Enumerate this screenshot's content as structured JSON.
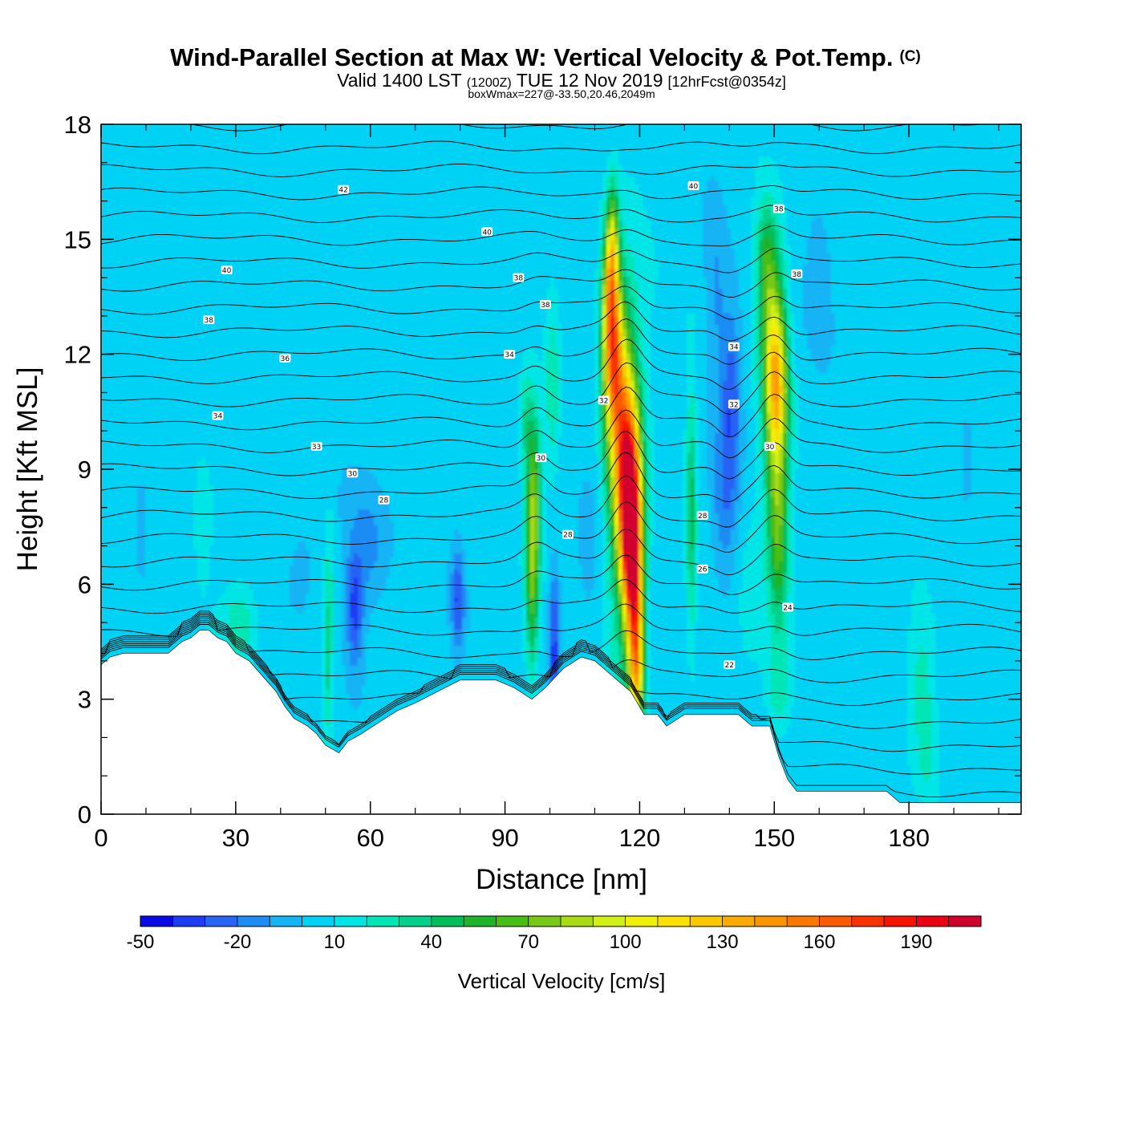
{
  "title": {
    "main": "Wind-Parallel Section at Max W: Vertical Velocity & Pot.Temp.",
    "copyright": "(C)",
    "line2_a": "Valid 1400 LST",
    "line2_b": "(1200Z)",
    "line2_c": "TUE 12 Nov 2019",
    "line2_d": "[12hrFcst@0354z]",
    "line3": "boxWmax=227@-33.50,20.46,2049m"
  },
  "chart_data": {
    "type": "heatmap",
    "xlabel": "Distance [nm]",
    "ylabel": "Height [Kft MSL]",
    "xlim": [
      0,
      205
    ],
    "ylim": [
      0,
      18
    ],
    "xticks": [
      0,
      30,
      60,
      90,
      120,
      150,
      180
    ],
    "yticks": [
      0,
      3,
      6,
      9,
      12,
      15,
      18
    ],
    "grid": false,
    "colorbar": {
      "label": "Vertical Velocity [cm/s]",
      "placement": "bottom",
      "tick_labels": [
        "-50",
        "-20",
        "10",
        "40",
        "70",
        "100",
        "130",
        "160",
        "190"
      ],
      "levels": [
        -50,
        -40,
        -30,
        -20,
        -10,
        0,
        10,
        20,
        30,
        40,
        50,
        60,
        70,
        80,
        90,
        100,
        110,
        120,
        130,
        140,
        150,
        160,
        170,
        180,
        190,
        200,
        210
      ],
      "colors": [
        "#0a0ae6",
        "#1e3cf5",
        "#2864f5",
        "#1e8cf5",
        "#14b4f5",
        "#00d2f5",
        "#00e6e6",
        "#00e6b4",
        "#00d28c",
        "#00be5a",
        "#1eb428",
        "#46be14",
        "#78c814",
        "#aadc14",
        "#d2f014",
        "#f0f00a",
        "#fae100",
        "#fac800",
        "#faaa00",
        "#fa9600",
        "#fa7800",
        "#fa5a00",
        "#fa3200",
        "#fa1400",
        "#eb0014",
        "#d2002d"
      ]
    },
    "background_value": 5,
    "terrain_kft": [
      [
        0,
        3.9
      ],
      [
        2,
        4.1
      ],
      [
        5,
        4.2
      ],
      [
        15,
        4.2
      ],
      [
        18,
        4.5
      ],
      [
        20,
        4.6
      ],
      [
        22,
        4.8
      ],
      [
        24,
        4.8
      ],
      [
        26,
        4.6
      ],
      [
        28,
        4.5
      ],
      [
        30,
        4.2
      ],
      [
        33,
        4.0
      ],
      [
        36,
        3.6
      ],
      [
        39,
        3.2
      ],
      [
        41,
        2.8
      ],
      [
        43,
        2.5
      ],
      [
        46,
        2.3
      ],
      [
        48,
        2.1
      ],
      [
        50,
        1.8
      ],
      [
        53,
        1.6
      ],
      [
        55,
        1.9
      ],
      [
        58,
        2.1
      ],
      [
        62,
        2.4
      ],
      [
        66,
        2.7
      ],
      [
        70,
        2.9
      ],
      [
        75,
        3.2
      ],
      [
        80,
        3.5
      ],
      [
        88,
        3.5
      ],
      [
        92,
        3.3
      ],
      [
        96,
        3.0
      ],
      [
        99,
        3.3
      ],
      [
        103,
        3.8
      ],
      [
        107,
        4.1
      ],
      [
        110,
        4.0
      ],
      [
        114,
        3.6
      ],
      [
        118,
        3.2
      ],
      [
        121,
        2.6
      ],
      [
        124,
        2.6
      ],
      [
        126,
        2.3
      ],
      [
        130,
        2.6
      ],
      [
        142,
        2.6
      ],
      [
        145,
        2.3
      ],
      [
        149,
        2.3
      ],
      [
        151,
        1.5
      ],
      [
        153,
        0.9
      ],
      [
        155,
        0.6
      ],
      [
        175,
        0.6
      ],
      [
        178,
        0.3
      ],
      [
        180,
        0.3
      ],
      [
        205,
        0.3
      ]
    ],
    "updraft_cells": [
      {
        "x": 118.0,
        "z": 7.6,
        "sx": 1.6,
        "sz": 1.6,
        "w": 190
      },
      {
        "x": 116.5,
        "z": 9.6,
        "sx": 2.2,
        "sz": 2.0,
        "w": 110
      },
      {
        "x": 114.0,
        "z": 12.0,
        "sx": 1.6,
        "sz": 1.5,
        "w": 115
      },
      {
        "x": 113.5,
        "z": 13.8,
        "sx": 1.2,
        "sz": 1.2,
        "w": 80
      },
      {
        "x": 114.0,
        "z": 15.2,
        "sx": 0.9,
        "sz": 1.0,
        "w": 45
      },
      {
        "x": 119.0,
        "z": 5.0,
        "sx": 1.3,
        "sz": 1.6,
        "w": 110
      },
      {
        "x": 119.5,
        "z": 3.6,
        "sx": 1.0,
        "sz": 0.9,
        "w": 50
      },
      {
        "x": 117.0,
        "z": 8.5,
        "sx": 3.2,
        "sz": 4.5,
        "w": 25
      },
      {
        "x": 150.5,
        "z": 11.2,
        "sx": 1.7,
        "sz": 1.3,
        "w": 85
      },
      {
        "x": 149.5,
        "z": 13.0,
        "sx": 2.0,
        "sz": 1.6,
        "w": 55
      },
      {
        "x": 150.5,
        "z": 9.0,
        "sx": 1.8,
        "sz": 1.8,
        "w": 50
      },
      {
        "x": 151.0,
        "z": 6.8,
        "sx": 1.5,
        "sz": 1.5,
        "w": 38
      },
      {
        "x": 148.0,
        "z": 14.5,
        "sx": 1.5,
        "sz": 1.0,
        "w": 30
      },
      {
        "x": 151.0,
        "z": 3.2,
        "sx": 2.0,
        "sz": 0.9,
        "w": 22
      },
      {
        "x": 96.5,
        "z": 8.3,
        "sx": 1.2,
        "sz": 1.6,
        "w": 60
      },
      {
        "x": 96.0,
        "z": 6.0,
        "sx": 1.0,
        "sz": 1.7,
        "w": 50
      },
      {
        "x": 94.5,
        "z": 10.2,
        "sx": 1.1,
        "sz": 1.0,
        "w": 25
      },
      {
        "x": 100.5,
        "z": 11.0,
        "sx": 1.1,
        "sz": 1.8,
        "w": 22
      },
      {
        "x": 131.5,
        "z": 8.0,
        "sx": 0.8,
        "sz": 2.3,
        "w": 38
      },
      {
        "x": 50.5,
        "z": 4.0,
        "sx": 0.7,
        "sz": 1.4,
        "w": 28
      },
      {
        "x": 51.0,
        "z": 6.5,
        "sx": 0.9,
        "sz": 1.5,
        "w": 14
      },
      {
        "x": 31.0,
        "z": 5.0,
        "sx": 2.8,
        "sz": 0.8,
        "w": 24
      },
      {
        "x": 145.0,
        "z": 6.0,
        "sx": 3.0,
        "sz": 2.5,
        "w": 10
      },
      {
        "x": 183.0,
        "z": 3.6,
        "sx": 2.2,
        "sz": 1.3,
        "w": 18
      },
      {
        "x": 184.0,
        "z": 1.6,
        "sx": 1.5,
        "sz": 0.8,
        "w": 14
      },
      {
        "x": 23.0,
        "z": 7.5,
        "sx": 2.0,
        "sz": 1.2,
        "w": 9
      }
    ],
    "downdraft_cells": [
      {
        "x": 140.5,
        "z": 11.0,
        "sx": 1.6,
        "sz": 1.6,
        "w": -30
      },
      {
        "x": 139.0,
        "z": 8.0,
        "sx": 2.2,
        "sz": 1.6,
        "w": -22
      },
      {
        "x": 137.0,
        "z": 13.5,
        "sx": 1.6,
        "sz": 1.8,
        "w": -14
      },
      {
        "x": 56.5,
        "z": 5.3,
        "sx": 1.3,
        "sz": 1.0,
        "w": -36
      },
      {
        "x": 59.5,
        "z": 7.0,
        "sx": 3.5,
        "sz": 1.2,
        "w": -18
      },
      {
        "x": 44.5,
        "z": 6.5,
        "sx": 3.0,
        "sz": 1.2,
        "w": -10
      },
      {
        "x": 79.5,
        "z": 5.6,
        "sx": 1.0,
        "sz": 0.9,
        "w": -34
      },
      {
        "x": 101.0,
        "z": 5.0,
        "sx": 0.8,
        "sz": 1.0,
        "w": -34
      },
      {
        "x": 101.0,
        "z": 3.8,
        "sx": 0.6,
        "sz": 0.5,
        "w": -26
      },
      {
        "x": 109.0,
        "z": 7.0,
        "sx": 2.2,
        "sz": 2.2,
        "w": -10
      },
      {
        "x": 160.0,
        "z": 14.0,
        "sx": 2.0,
        "sz": 1.3,
        "w": -12
      },
      {
        "x": 193.0,
        "z": 9.5,
        "sx": 0.8,
        "sz": 0.8,
        "w": -12
      },
      {
        "x": 9.0,
        "z": 7.0,
        "sx": 0.7,
        "sz": 0.8,
        "w": -10
      }
    ],
    "theta_contours": {
      "interval_c": 1,
      "labels": [
        {
          "text": "42",
          "x": 54,
          "z": 16.3
        },
        {
          "text": "40",
          "x": 86,
          "z": 15.2
        },
        {
          "text": "40",
          "x": 28,
          "z": 14.2
        },
        {
          "text": "38",
          "x": 93,
          "z": 14.0
        },
        {
          "text": "38",
          "x": 99,
          "z": 13.3
        },
        {
          "text": "38",
          "x": 24,
          "z": 12.9
        },
        {
          "text": "36",
          "x": 41,
          "z": 11.9
        },
        {
          "text": "34",
          "x": 91,
          "z": 12.0
        },
        {
          "text": "34",
          "x": 26,
          "z": 10.4
        },
        {
          "text": "33",
          "x": 48,
          "z": 9.6
        },
        {
          "text": "30",
          "x": 56,
          "z": 8.9
        },
        {
          "text": "28",
          "x": 63,
          "z": 8.2
        },
        {
          "text": "30",
          "x": 98,
          "z": 9.3
        },
        {
          "text": "28",
          "x": 104,
          "z": 7.3
        },
        {
          "text": "32",
          "x": 112,
          "z": 10.8
        },
        {
          "text": "40",
          "x": 132,
          "z": 16.4
        },
        {
          "text": "38",
          "x": 151,
          "z": 15.8
        },
        {
          "text": "38",
          "x": 155,
          "z": 14.1
        },
        {
          "text": "34",
          "x": 141,
          "z": 12.2
        },
        {
          "text": "32",
          "x": 141,
          "z": 10.7
        },
        {
          "text": "30",
          "x": 149,
          "z": 9.6
        },
        {
          "text": "28",
          "x": 134,
          "z": 7.8
        },
        {
          "text": "26",
          "x": 134,
          "z": 6.4
        },
        {
          "text": "24",
          "x": 153,
          "z": 5.4
        },
        {
          "text": "22",
          "x": 140,
          "z": 3.9
        }
      ]
    }
  }
}
